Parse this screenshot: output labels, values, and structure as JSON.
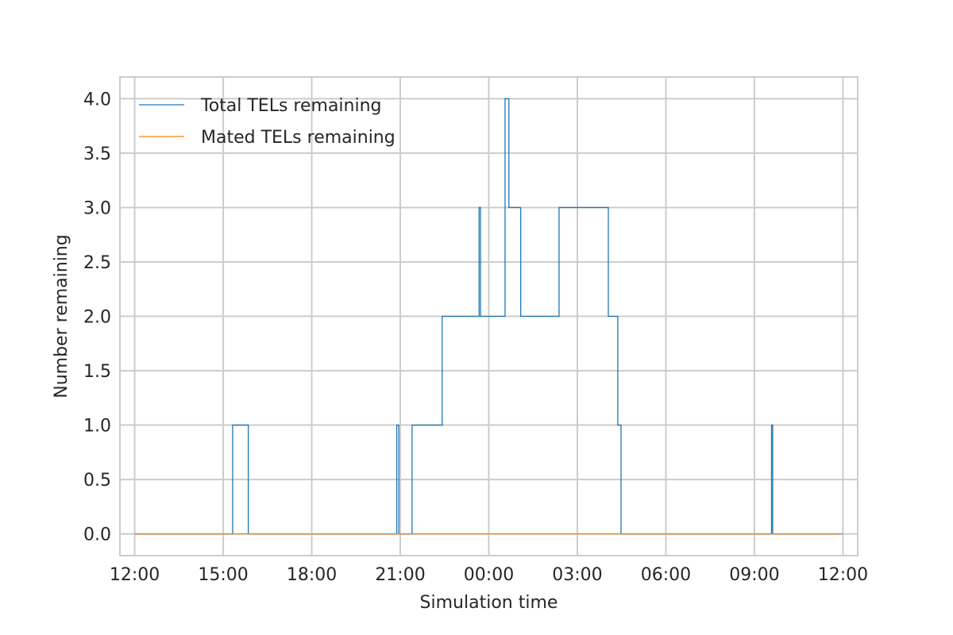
{
  "chart_data": {
    "type": "line",
    "title": "",
    "xlabel": "Simulation time",
    "ylabel": "Number remaining",
    "grid": true,
    "legend_position": "top-left",
    "x_unit": "hours of simulation",
    "xlim": [
      -0.5,
      24.5
    ],
    "ylim": [
      -0.2,
      4.2
    ],
    "x_ticks": [
      {
        "value": 0,
        "label": "12:00"
      },
      {
        "value": 3,
        "label": "15:00"
      },
      {
        "value": 6,
        "label": "18:00"
      },
      {
        "value": 9,
        "label": "21:00"
      },
      {
        "value": 12,
        "label": "00:00"
      },
      {
        "value": 15,
        "label": "03:00"
      },
      {
        "value": 18,
        "label": "06:00"
      },
      {
        "value": 21,
        "label": "09:00"
      },
      {
        "value": 24,
        "label": "12:00"
      }
    ],
    "y_ticks": [
      {
        "value": 0.0,
        "label": "0.0"
      },
      {
        "value": 0.5,
        "label": "0.5"
      },
      {
        "value": 1.0,
        "label": "1.0"
      },
      {
        "value": 1.5,
        "label": "1.5"
      },
      {
        "value": 2.0,
        "label": "2.0"
      },
      {
        "value": 2.5,
        "label": "2.5"
      },
      {
        "value": 3.0,
        "label": "3.0"
      },
      {
        "value": 3.5,
        "label": "3.5"
      },
      {
        "value": 4.0,
        "label": "4.0"
      }
    ],
    "series": [
      {
        "name": "Total TELs remaining",
        "color": "#1f77b4",
        "step": true,
        "x": [
          0,
          3.32,
          3.85,
          8.88,
          8.95,
          9.4,
          10.42,
          11.67,
          11.72,
          12.55,
          12.68,
          13.08,
          14.38,
          16.05,
          16.37,
          16.48,
          16.6,
          21.58,
          21.62,
          24
        ],
        "y": [
          0,
          1,
          0,
          1,
          0,
          1,
          2,
          3,
          2,
          4,
          3,
          2,
          3,
          2,
          1,
          0,
          0,
          1,
          0,
          0
        ]
      },
      {
        "name": "Mated TELs remaining",
        "color": "#ff7f0e",
        "step": true,
        "x": [
          0,
          24
        ],
        "y": [
          0,
          0
        ]
      }
    ]
  }
}
